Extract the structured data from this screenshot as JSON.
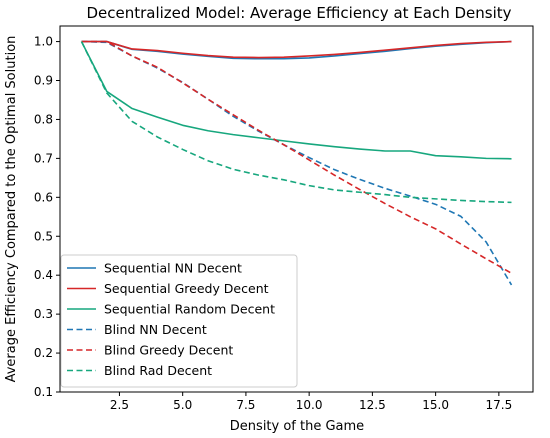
{
  "chart_data": {
    "type": "line",
    "title": "Decentralized Model: Average Efficiency at Each Density",
    "xlabel": "Density of the Game",
    "ylabel": "Average Efficiency Compared to the Optimal Solution",
    "xlim": [
      0.15,
      18.85
    ],
    "ylim": [
      0.1,
      1.04
    ],
    "xticks": [
      2.5,
      5.0,
      7.5,
      10.0,
      12.5,
      15.0,
      17.5
    ],
    "xtick_labels": [
      "2.5",
      "5.0",
      "7.5",
      "10.0",
      "12.5",
      "15.0",
      "17.5"
    ],
    "yticks": [
      0.1,
      0.2,
      0.3,
      0.4,
      0.5,
      0.6,
      0.7,
      0.8,
      0.9,
      1.0
    ],
    "ytick_labels": [
      "0.1",
      "0.2",
      "0.3",
      "0.4",
      "0.5",
      "0.6",
      "0.7",
      "0.8",
      "0.9",
      "1.0"
    ],
    "grid": false,
    "legend_position": "lower-left",
    "x": [
      1,
      2,
      3,
      4,
      5,
      6,
      7,
      8,
      9,
      10,
      11,
      12,
      13,
      14,
      15,
      16,
      17,
      18
    ],
    "series": [
      {
        "name": "Sequential NN Decent",
        "color": "#1f77b4",
        "dash": "solid",
        "values": [
          1.0,
          1.0,
          0.98,
          0.975,
          0.968,
          0.962,
          0.957,
          0.956,
          0.956,
          0.958,
          0.963,
          0.969,
          0.975,
          0.982,
          0.988,
          0.993,
          0.997,
          1.0
        ]
      },
      {
        "name": "Sequential Greedy Decent",
        "color": "#d62728",
        "dash": "solid",
        "values": [
          1.0,
          1.0,
          0.981,
          0.977,
          0.97,
          0.964,
          0.96,
          0.959,
          0.96,
          0.963,
          0.967,
          0.972,
          0.978,
          0.984,
          0.99,
          0.995,
          0.998,
          1.0
        ]
      },
      {
        "name": "Sequential Random Decent",
        "color": "#17a77e",
        "dash": "solid",
        "values": [
          1.0,
          0.872,
          0.828,
          0.806,
          0.785,
          0.771,
          0.761,
          0.753,
          0.745,
          0.737,
          0.73,
          0.724,
          0.719,
          0.719,
          0.707,
          0.704,
          0.7,
          0.699
        ]
      },
      {
        "name": "Blind NN Decent",
        "color": "#1f77b4",
        "dash": "dashed",
        "values": [
          1.0,
          0.998,
          0.963,
          0.932,
          0.895,
          0.852,
          0.808,
          0.77,
          0.735,
          0.702,
          0.671,
          0.646,
          0.623,
          0.603,
          0.582,
          0.551,
          0.485,
          0.375
        ]
      },
      {
        "name": "Blind Greedy Decent",
        "color": "#d62728",
        "dash": "dashed",
        "values": [
          1.0,
          1.0,
          0.963,
          0.934,
          0.894,
          0.852,
          0.812,
          0.772,
          0.735,
          0.696,
          0.657,
          0.62,
          0.584,
          0.55,
          0.519,
          0.48,
          0.442,
          0.405
        ]
      },
      {
        "name": "Blind Rad Decent",
        "color": "#17a77e",
        "dash": "dashed",
        "values": [
          1.0,
          0.868,
          0.795,
          0.755,
          0.723,
          0.694,
          0.672,
          0.657,
          0.645,
          0.63,
          0.619,
          0.613,
          0.607,
          0.6,
          0.596,
          0.592,
          0.589,
          0.587
        ]
      }
    ]
  }
}
